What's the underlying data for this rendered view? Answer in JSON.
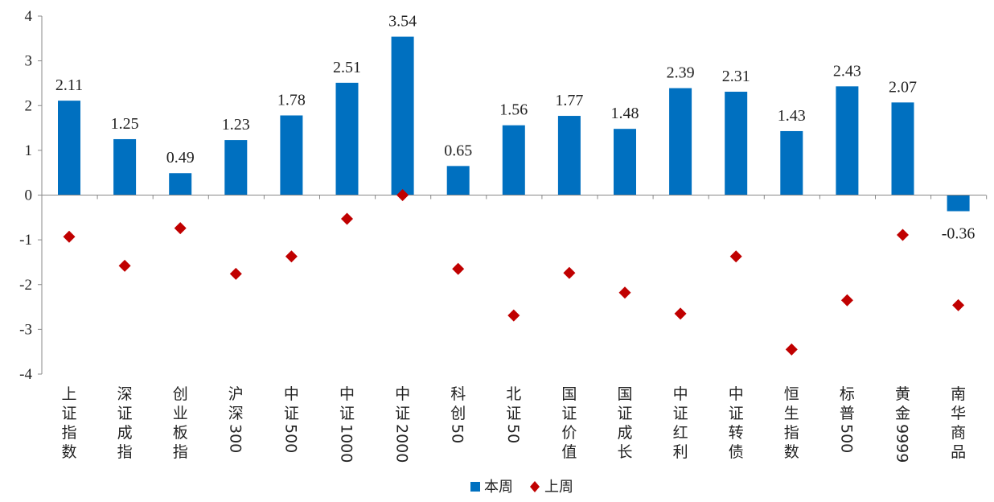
{
  "chart_data": {
    "type": "bar",
    "title": "",
    "xlabel": "",
    "ylabel": "",
    "ylim": [
      -4,
      4
    ],
    "yticks": [
      -4,
      -3,
      -2,
      -1,
      0,
      1,
      2,
      3,
      4
    ],
    "grid": false,
    "legend_position": "bottom-center",
    "categories": [
      "上证指数",
      "深证成指",
      "创业板指",
      "沪深300",
      "中证500",
      "中证1000",
      "中证2000",
      "科创50",
      "北证50",
      "国证价值",
      "国证成长",
      "中证红利",
      "中证转债",
      "恒生指数",
      "标普500",
      "黄金9999",
      "南华商品"
    ],
    "series": [
      {
        "name": "本周",
        "kind": "bar",
        "color": "#0070C0",
        "values": [
          2.11,
          1.25,
          0.49,
          1.23,
          1.78,
          2.51,
          3.54,
          0.65,
          1.56,
          1.77,
          1.48,
          2.39,
          2.31,
          1.43,
          2.43,
          2.07,
          -0.36
        ],
        "labels": [
          "2.11",
          "1.25",
          "0.49",
          "1.23",
          "1.78",
          "2.51",
          "3.54",
          "0.65",
          "1.56",
          "1.77",
          "1.48",
          "2.39",
          "2.31",
          "1.43",
          "2.43",
          "2.07",
          "-0.36"
        ]
      },
      {
        "name": "上周",
        "kind": "diamond",
        "color": "#C00000",
        "values": [
          -0.93,
          -1.58,
          -0.74,
          -1.76,
          -1.37,
          -0.53,
          0.0,
          -1.65,
          -2.69,
          -1.74,
          -2.18,
          -2.65,
          -1.37,
          -3.45,
          -2.35,
          -0.89,
          -2.46
        ]
      }
    ]
  }
}
